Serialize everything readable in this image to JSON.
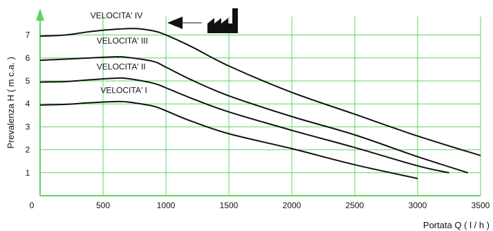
{
  "chart_data": {
    "type": "line",
    "xlabel": "Portata Q  ( l / h )",
    "ylabel": "Prevalenza H  ( m c.a. )",
    "xlim": [
      0,
      3500
    ],
    "ylim": [
      0,
      7.5
    ],
    "x_ticks": [
      0,
      500,
      1000,
      1500,
      2000,
      2500,
      3000,
      3500
    ],
    "x_tick_labels": [
      "",
      "500",
      "1000",
      "1500",
      "2000",
      "2500",
      "3000",
      "3500"
    ],
    "y_ticks": [
      1,
      2,
      3,
      4,
      5,
      6,
      7
    ],
    "y_tick_labels": [
      "1",
      "2",
      "3",
      "4",
      "5",
      "6",
      "7"
    ],
    "origin_label": "0",
    "grid": true,
    "grid_color": "#5fd35f",
    "axis_color": "#5fd35f",
    "line_color": "#111111",
    "series": [
      {
        "name": "VELOCITA' IV",
        "x": [
          0,
          200,
          400,
          600,
          750,
          900,
          1000,
          1200,
          1500,
          2000,
          2500,
          3000,
          3500
        ],
        "y": [
          6.95,
          7.0,
          7.15,
          7.25,
          7.28,
          7.18,
          7.0,
          6.5,
          5.65,
          4.5,
          3.55,
          2.6,
          1.75
        ]
      },
      {
        "name": "VELOCITA' III",
        "x": [
          0,
          200,
          400,
          600,
          700,
          900,
          1000,
          1200,
          1500,
          2000,
          2500,
          3000,
          3400
        ],
        "y": [
          5.9,
          5.95,
          6.0,
          6.05,
          6.02,
          5.85,
          5.6,
          5.05,
          4.35,
          3.45,
          2.65,
          1.7,
          1.0
        ]
      },
      {
        "name": "VELOCITA' II",
        "x": [
          0,
          200,
          400,
          600,
          700,
          900,
          1000,
          1200,
          1500,
          2000,
          2500,
          3000,
          3250
        ],
        "y": [
          4.95,
          4.97,
          5.05,
          5.12,
          5.1,
          4.9,
          4.7,
          4.25,
          3.65,
          2.85,
          2.1,
          1.3,
          1.0
        ]
      },
      {
        "name": "VELOCITA' I",
        "x": [
          0,
          200,
          400,
          600,
          700,
          900,
          1000,
          1200,
          1500,
          2000,
          2500,
          3000
        ],
        "y": [
          3.95,
          3.98,
          4.05,
          4.1,
          4.08,
          3.9,
          3.7,
          3.25,
          2.7,
          2.05,
          1.35,
          0.75
        ]
      }
    ],
    "annotations": [
      {
        "text": "VELOCITA' IV",
        "x": 400,
        "y": 7.72
      },
      {
        "text": "VELOCITA' III",
        "x": 450,
        "y": 6.63
      },
      {
        "text": "VELOCITA' II",
        "x": 450,
        "y": 5.5
      },
      {
        "text": "VELOCITA' I",
        "x": 480,
        "y": 4.48
      }
    ]
  }
}
